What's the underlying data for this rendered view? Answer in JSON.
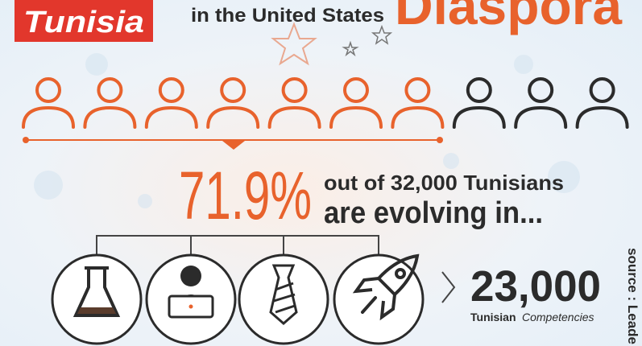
{
  "header": {
    "badge": "Tunisia",
    "subtitle": "in the United States",
    "title": "Diaspora"
  },
  "stat": {
    "percent": "71.9%",
    "line1": "out of 32,000 Tunisians",
    "line2": "are evolving in..."
  },
  "total": {
    "number": "23,000",
    "label_strong": "Tunisian",
    "label": "Competencies"
  },
  "source": "source : Leade"
}
